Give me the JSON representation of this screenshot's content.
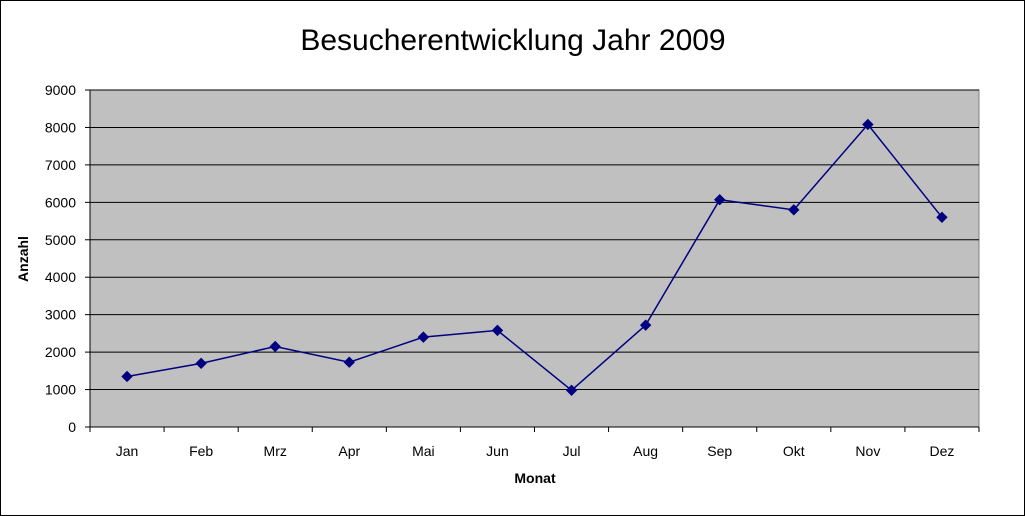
{
  "chart_data": {
    "type": "line",
    "title": "Besucherentwicklung Jahr 2009",
    "xlabel": "Monat",
    "ylabel": "Anzahl",
    "categories": [
      "Jan",
      "Feb",
      "Mrz",
      "Apr",
      "Mai",
      "Jun",
      "Jul",
      "Aug",
      "Sep",
      "Okt",
      "Nov",
      "Dez"
    ],
    "series": [
      {
        "values": [
          1350,
          1700,
          2150,
          1730,
          2400,
          2580,
          980,
          2720,
          6070,
          5800,
          8080,
          5600
        ]
      }
    ],
    "ylim": [
      0,
      9000
    ],
    "yticks": [
      0,
      1000,
      2000,
      3000,
      4000,
      5000,
      6000,
      7000,
      8000,
      9000
    ],
    "grid": true,
    "legend": "none",
    "colors": {
      "plot_background": "#C0C0C0",
      "series_line": "#000080",
      "gridline": "#000000"
    }
  }
}
